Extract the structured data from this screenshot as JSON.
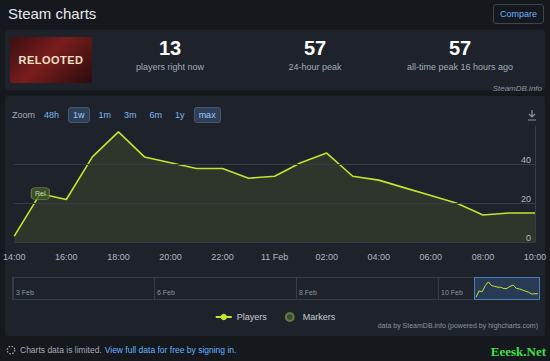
{
  "header": {
    "title": "Steam charts",
    "button": "Compare"
  },
  "game": {
    "image_text": "RELOOTED"
  },
  "stats": [
    {
      "value": 13,
      "label": "players right now"
    },
    {
      "value": 57,
      "label": "24-hour peak"
    },
    {
      "value": 57,
      "label": "all-time peak 16 hours ago"
    }
  ],
  "watermark": "SteamDB.info",
  "zoom": {
    "label": "Zoom",
    "buttons": [
      "48h",
      "1w",
      "1m",
      "3m",
      "6m",
      "1y",
      "max"
    ],
    "selected": [
      "1w",
      "max"
    ]
  },
  "chart_data": {
    "type": "line",
    "categories": [
      "14:00",
      null,
      "16:00",
      null,
      "18:00",
      null,
      "20:00",
      null,
      "22:00",
      null,
      "11 Feb",
      null,
      "02:00",
      null,
      "04:00",
      null,
      "06:00",
      null,
      "08:00",
      null,
      "10:00"
    ],
    "series": [
      {
        "name": "Players",
        "color": "#c2e330",
        "values": [
          3,
          25,
          22,
          44,
          57,
          44,
          41,
          38,
          38,
          33,
          34,
          41,
          46,
          34,
          32,
          28,
          24,
          20,
          14,
          15,
          15
        ]
      }
    ],
    "annotations": [
      {
        "name": "Markers",
        "label": "Rel",
        "position": 1,
        "color": "#3f5a2a"
      }
    ],
    "ylim": [
      0,
      60
    ],
    "yticks": [
      0,
      20,
      40
    ],
    "grid": true,
    "legend": "bottom",
    "marker": "none"
  },
  "navigator": {
    "labels": [
      "3 Feb",
      "6 Feb",
      "8 Feb",
      "10 Feb"
    ]
  },
  "credit": "data by SteamDB.info (powered by highcharts.com)",
  "footer": {
    "notice": "Charts data is limited.",
    "link": "View full data for free by signing in."
  },
  "corner_mark": "Eeesk.Net"
}
